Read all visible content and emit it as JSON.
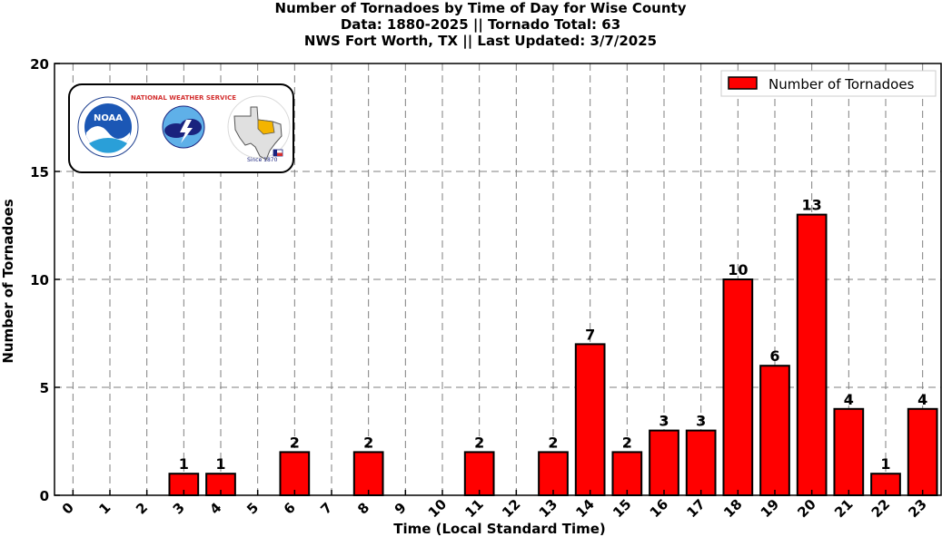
{
  "title_lines": [
    "Number of Tornadoes by Time of Day for Wise County",
    "Data: 1880-2025 || Tornado Total: 63",
    "NWS Fort Worth, TX || Last Updated: 3/7/2025"
  ],
  "logos": {
    "noaa_text": "NOAA",
    "nws_text": "NATIONAL WEATHER SERVICE",
    "fw_since": "Since 1870"
  },
  "colors": {
    "bar": "#ff0000",
    "edge": "#000000",
    "grid": "#7f7f7f"
  },
  "chart_data": {
    "type": "bar",
    "title": "Number of Tornadoes by Time of Day for Wise County",
    "subtitle": "Data: 1880-2025 || Tornado Total: 63 / NWS Fort Worth, TX || Last Updated: 3/7/2025",
    "xlabel": "Time (Local Standard Time)",
    "ylabel": "Number of Tornadoes",
    "categories": [
      "0",
      "1",
      "2",
      "3",
      "4",
      "5",
      "6",
      "7",
      "8",
      "9",
      "10",
      "11",
      "12",
      "13",
      "14",
      "15",
      "16",
      "17",
      "18",
      "19",
      "20",
      "21",
      "22",
      "23"
    ],
    "series": [
      {
        "name": "Number of Tornadoes",
        "values": [
          0,
          0,
          0,
          1,
          1,
          0,
          2,
          0,
          2,
          0,
          0,
          2,
          0,
          2,
          7,
          2,
          3,
          3,
          10,
          6,
          13,
          4,
          1,
          4
        ]
      }
    ],
    "ylim": [
      0,
      20
    ],
    "yticks": [
      0,
      5,
      10,
      15,
      20
    ],
    "grid": true,
    "legend_position": "top-right"
  }
}
